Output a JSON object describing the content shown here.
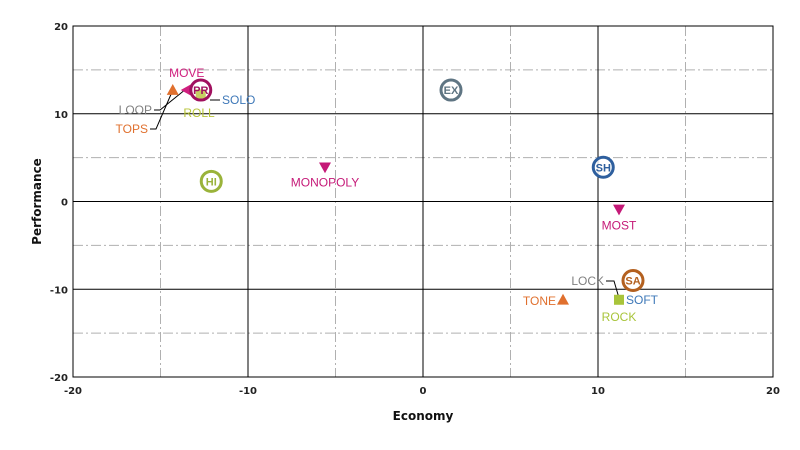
{
  "chart_data": {
    "type": "scatter",
    "title": "",
    "xlabel": "Economy",
    "ylabel": "Performance",
    "xlim": [
      -20,
      20
    ],
    "ylim": [
      -20,
      20
    ],
    "xticks": [
      -20,
      -10,
      0,
      10,
      20
    ],
    "yticks": [
      -20,
      -10,
      0,
      10,
      20
    ],
    "major_grid_step": 10,
    "minor_grid_step": 5,
    "grid": true,
    "legend": "none",
    "circle_points": [
      {
        "label": "PR",
        "x": -12.7,
        "y": 12.7,
        "color": "#a0105e"
      },
      {
        "label": "EX",
        "x": 1.6,
        "y": 12.7,
        "color": "#5f7583"
      },
      {
        "label": "HI",
        "x": -12.1,
        "y": 2.3,
        "color": "#9ab33a"
      },
      {
        "label": "SH",
        "x": 10.3,
        "y": 3.9,
        "color": "#2e5f9e"
      },
      {
        "label": "SA",
        "x": 12.0,
        "y": -9.0,
        "color": "#b3601f"
      }
    ],
    "marker_points": [
      {
        "label": "MOVE",
        "x": -13.5,
        "y": 12.7,
        "marker": "triangle-left",
        "color": "#d0207f"
      },
      {
        "label": "LOOP",
        "x": -13.5,
        "y": 12.7,
        "marker": "none",
        "color": "#7f7f7f"
      },
      {
        "label": "TOPS",
        "x": -14.3,
        "y": 12.7,
        "marker": "triangle-up",
        "color": "#e0702e"
      },
      {
        "label": "SOLO",
        "x": -12.7,
        "y": 12.2,
        "marker": "none",
        "color": "#3e78b8"
      },
      {
        "label": "ROLL",
        "x": -12.7,
        "y": 12.2,
        "marker": "square",
        "color": "#b8c43a"
      },
      {
        "label": "MONOPOLY",
        "x": -5.6,
        "y": 3.9,
        "marker": "triangle-down",
        "color": "#c51a78"
      },
      {
        "label": "MOST",
        "x": 11.2,
        "y": -0.9,
        "marker": "triangle-down",
        "color": "#c51a78"
      },
      {
        "label": "LOCK",
        "x": 11.2,
        "y": -11.2,
        "marker": "none",
        "color": "#7f7f7f"
      },
      {
        "label": "SOFT",
        "x": 11.2,
        "y": -11.2,
        "marker": "none",
        "color": "#3e78b8"
      },
      {
        "label": "ROCK",
        "x": 11.2,
        "y": -11.2,
        "marker": "square",
        "color": "#a8c43a"
      },
      {
        "label": "TONE",
        "x": 8.0,
        "y": -11.2,
        "marker": "triangle-up",
        "color": "#e0702e"
      }
    ]
  }
}
